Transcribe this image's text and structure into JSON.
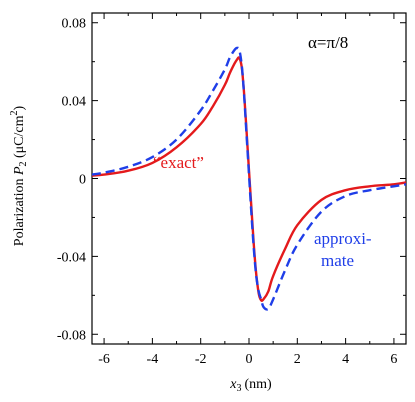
{
  "chart_data": {
    "type": "line",
    "title": "",
    "xlabel": {
      "var": "x",
      "sub": "3",
      "unit": "(nm)"
    },
    "ylabel": {
      "text": "Polarization ",
      "var": "P",
      "sub": "2",
      "unit": " (μC/cm",
      "sup": "2",
      "close": ")"
    },
    "xlim": [
      -6.5,
      6.5
    ],
    "ylim": [
      -0.085,
      0.085
    ],
    "xticks": [
      -6,
      -4,
      -2,
      0,
      2,
      4,
      6
    ],
    "xtick_labels": [
      "-6",
      "-4",
      "-2",
      "0",
      "2",
      "4",
      "6"
    ],
    "yticks": [
      -0.08,
      -0.04,
      0,
      0.04,
      0.08
    ],
    "ytick_labels": [
      "-0.08",
      "-0.04",
      "0",
      "0.04",
      "0.08"
    ],
    "grid": false,
    "parameter_label": "α=π/8",
    "series": [
      {
        "name": "“exact”",
        "color": "#e41a1c",
        "style": "solid",
        "x": [
          -6.5,
          -6,
          -5,
          -4,
          -3,
          -2,
          -1.5,
          -1,
          -0.8,
          -0.6,
          -0.5,
          -0.4,
          -0.3,
          -0.2,
          -0.1,
          0,
          0.1,
          0.2,
          0.3,
          0.4,
          0.5,
          0.6,
          0.8,
          1,
          1.5,
          2,
          3,
          4,
          5,
          6,
          6.5
        ],
        "y": [
          0.0015,
          0.002,
          0.004,
          0.008,
          0.016,
          0.028,
          0.037,
          0.048,
          0.054,
          0.059,
          0.061,
          0.062,
          0.057,
          0.043,
          0.024,
          0.004,
          -0.015,
          -0.034,
          -0.049,
          -0.059,
          -0.0625,
          -0.062,
          -0.058,
          -0.05,
          -0.036,
          -0.024,
          -0.011,
          -0.006,
          -0.004,
          -0.003,
          -0.002
        ]
      },
      {
        "name": "approxi-mate",
        "label_lines": [
          "approxi-",
          "mate"
        ],
        "color": "#1f3ee8",
        "style": "dashed",
        "x": [
          -6.5,
          -6,
          -5,
          -4,
          -3,
          -2,
          -1.5,
          -1,
          -0.8,
          -0.6,
          -0.5,
          -0.4,
          -0.3,
          -0.2,
          -0.1,
          0,
          0.1,
          0.2,
          0.3,
          0.4,
          0.5,
          0.6,
          0.8,
          1,
          1.5,
          2,
          3,
          4,
          5,
          6,
          6.5
        ],
        "y": [
          0.002,
          0.003,
          0.006,
          0.011,
          0.02,
          0.035,
          0.045,
          0.056,
          0.062,
          0.066,
          0.067,
          0.066,
          0.058,
          0.042,
          0.022,
          0.002,
          -0.018,
          -0.036,
          -0.05,
          -0.058,
          -0.062,
          -0.066,
          -0.067,
          -0.062,
          -0.047,
          -0.034,
          -0.017,
          -0.009,
          -0.006,
          -0.004,
          -0.003
        ]
      }
    ]
  }
}
